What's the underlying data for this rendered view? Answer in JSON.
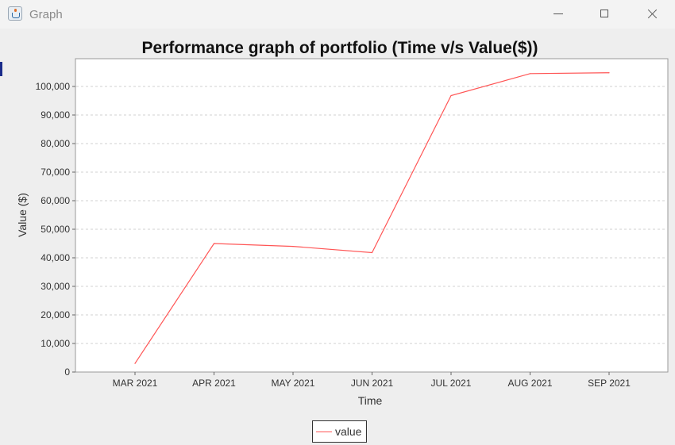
{
  "window": {
    "title": "Graph"
  },
  "colors": {
    "series": "#ff5555",
    "plot_bg": "#ffffff",
    "grid": "#d0d0d0",
    "frame": "#999999"
  },
  "chart_data": {
    "type": "line",
    "title": "Performance graph of portfolio (Time v/s Value($))",
    "xlabel": "Time",
    "ylabel": "Value ($)",
    "categories": [
      "MAR 2021",
      "APR 2021",
      "MAY 2021",
      "JUN 2021",
      "JUL 2021",
      "AUG 2021",
      "SEP 2021"
    ],
    "series": [
      {
        "name": "value",
        "values": [
          3000,
          45000,
          44000,
          41800,
          96800,
          104500,
          104800
        ]
      }
    ],
    "ylim": [
      0,
      100000
    ],
    "yticks": [
      0,
      10000,
      20000,
      30000,
      40000,
      50000,
      60000,
      70000,
      80000,
      90000,
      100000
    ],
    "ytick_labels": [
      "0",
      "10,000",
      "20,000",
      "30,000",
      "40,000",
      "50,000",
      "60,000",
      "70,000",
      "80,000",
      "90,000",
      "100,000"
    ],
    "grid": true,
    "legend": "bottom-center"
  }
}
